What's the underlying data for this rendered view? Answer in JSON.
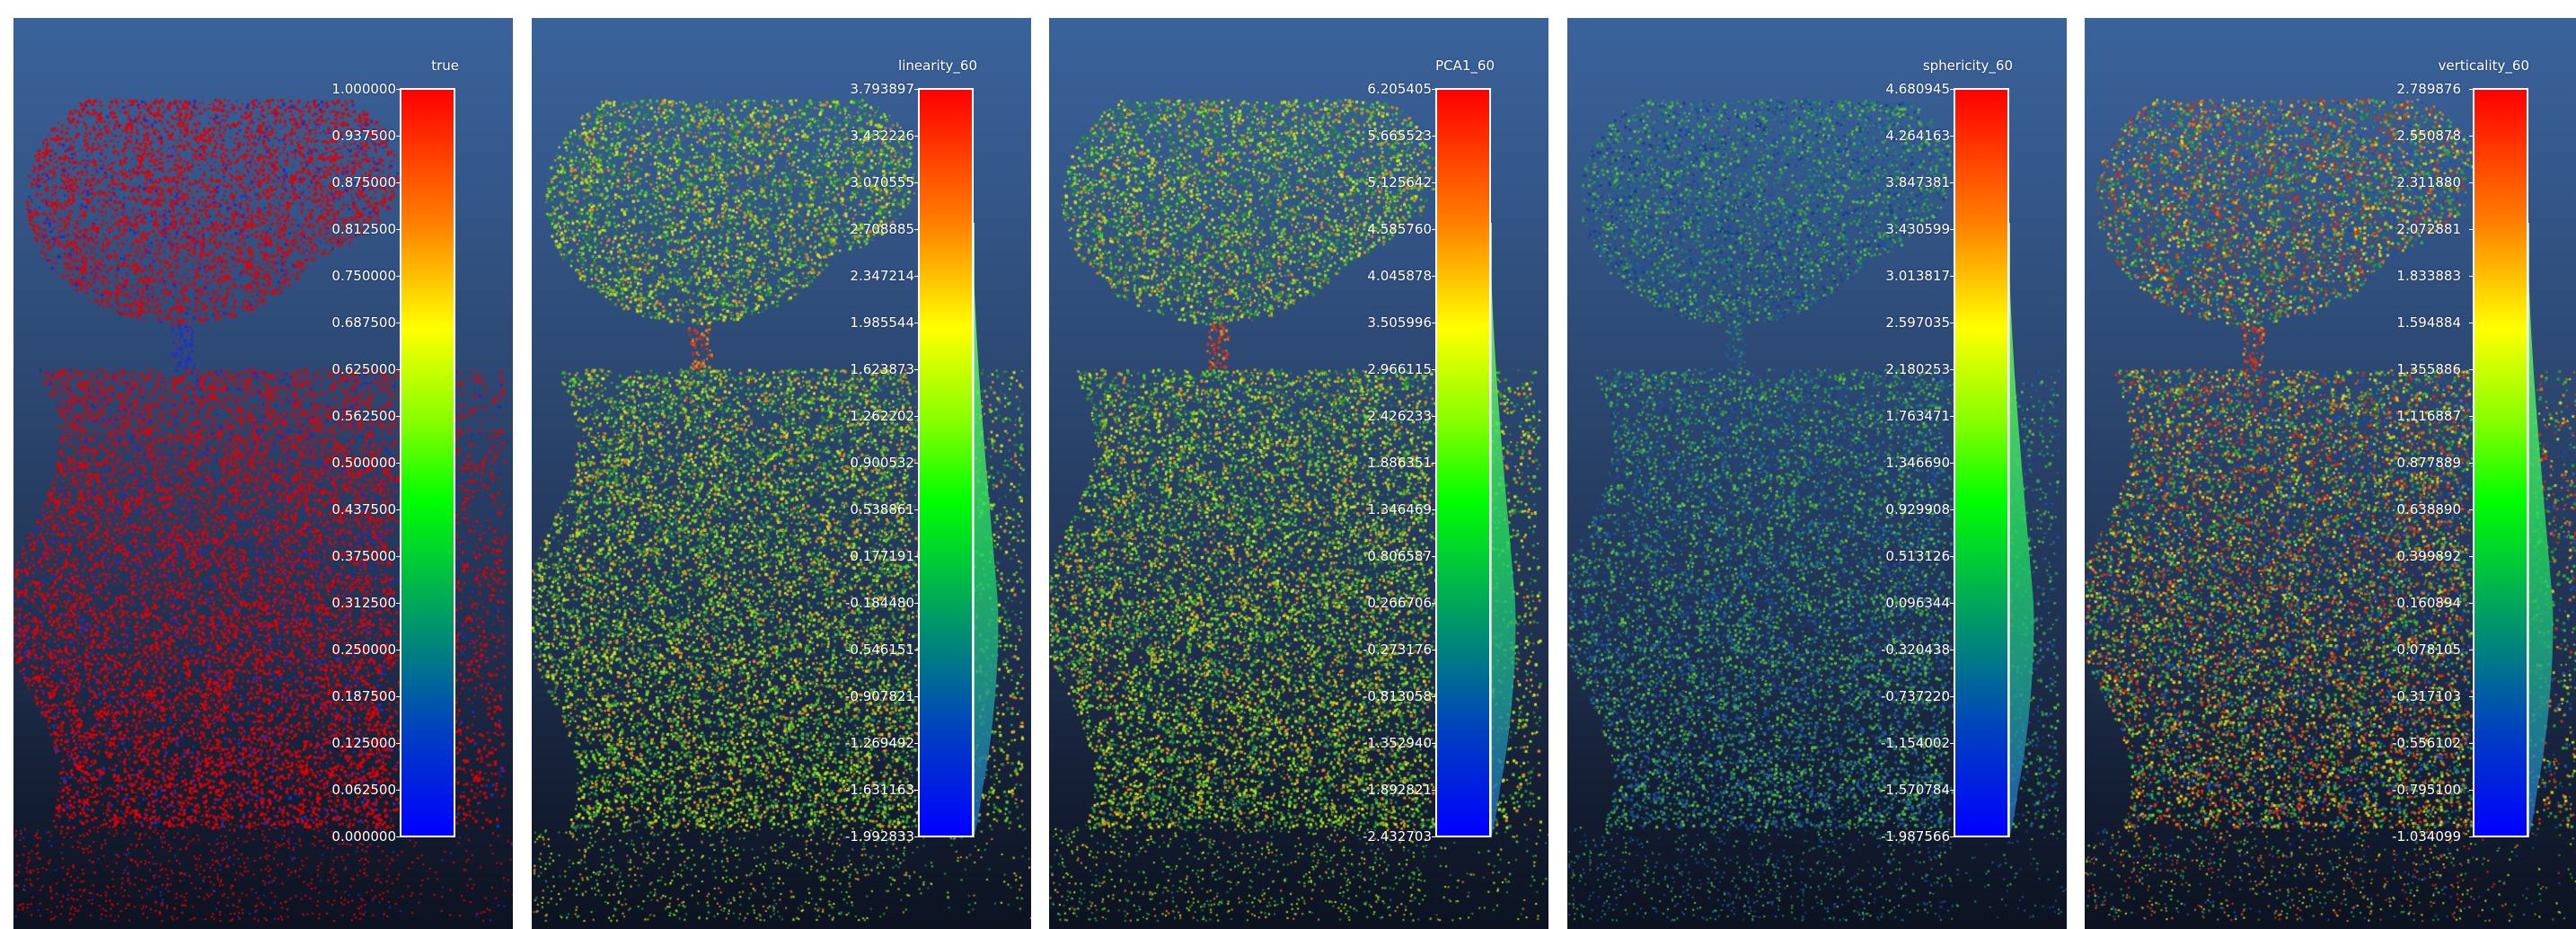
{
  "panels": [
    {
      "sf_name": "true",
      "mode": "binary",
      "ticks": [
        "1.000000",
        "0.937500",
        "0.875000",
        "0.812500",
        "0.750000",
        "0.687500",
        "0.625000",
        "0.562500",
        "0.500000",
        "0.437500",
        "0.375000",
        "0.312500",
        "0.250000",
        "0.187500",
        "0.125000",
        "0.062500",
        "0.000000"
      ],
      "histogram": false
    },
    {
      "sf_name": "linearity_60",
      "mode": "mostly_green_with_red_trunk",
      "ticks": [
        "3.793897",
        "3.432226",
        "3.070555",
        "2.708885",
        "2.347214",
        "1.985544",
        "1.623873",
        "1.262202",
        "0.900532",
        "0.538861",
        "0.177191",
        "-0.184480",
        "-0.546151",
        "-0.907821",
        "-1.269492",
        "-1.631163",
        "-1.992833"
      ],
      "histogram": true
    },
    {
      "sf_name": "PCA1_60",
      "mode": "mostly_green_with_red_trunk",
      "ticks": [
        "6.205405",
        "5.665523",
        "5.125642",
        "4.585760",
        "4.045878",
        "3.505996",
        "2.966115",
        "2.426233",
        "1.886351",
        "1.346469",
        "0.806587",
        "0.266706",
        "-0.273176",
        "-0.813058",
        "-1.352940",
        "-1.892821",
        "-2.432703"
      ],
      "histogram": true
    },
    {
      "sf_name": "sphericity_60",
      "mode": "green_blue",
      "ticks": [
        "4.680945",
        "4.264163",
        "3.847381",
        "3.430599",
        "3.013817",
        "2.597035",
        "2.180253",
        "1.763471",
        "1.346690",
        "0.929908",
        "0.513126",
        "0.096344",
        "-0.320438",
        "-0.737220",
        "-1.154002",
        "-1.570784",
        "-1.987566"
      ],
      "histogram": true
    },
    {
      "sf_name": "verticality_60",
      "mode": "red_trunk_mixed",
      "ticks": [
        "2.789876",
        "2.550878",
        "2.311880",
        "2.072881",
        "1.833883",
        "1.594884",
        "1.355886",
        "1.116887",
        "0.877889",
        "0.638890",
        "0.399892",
        "0.160894",
        "-0.078105",
        "-0.317103",
        "-0.556102",
        "-0.795100",
        "-1.034099"
      ],
      "histogram": true
    }
  ],
  "colors": {
    "background_top": "#3a639b",
    "background_bottom": "#0c1220",
    "ramp": [
      "#ff0000",
      "#ff8000",
      "#ffff00",
      "#00ff00",
      "#0000ff"
    ]
  }
}
